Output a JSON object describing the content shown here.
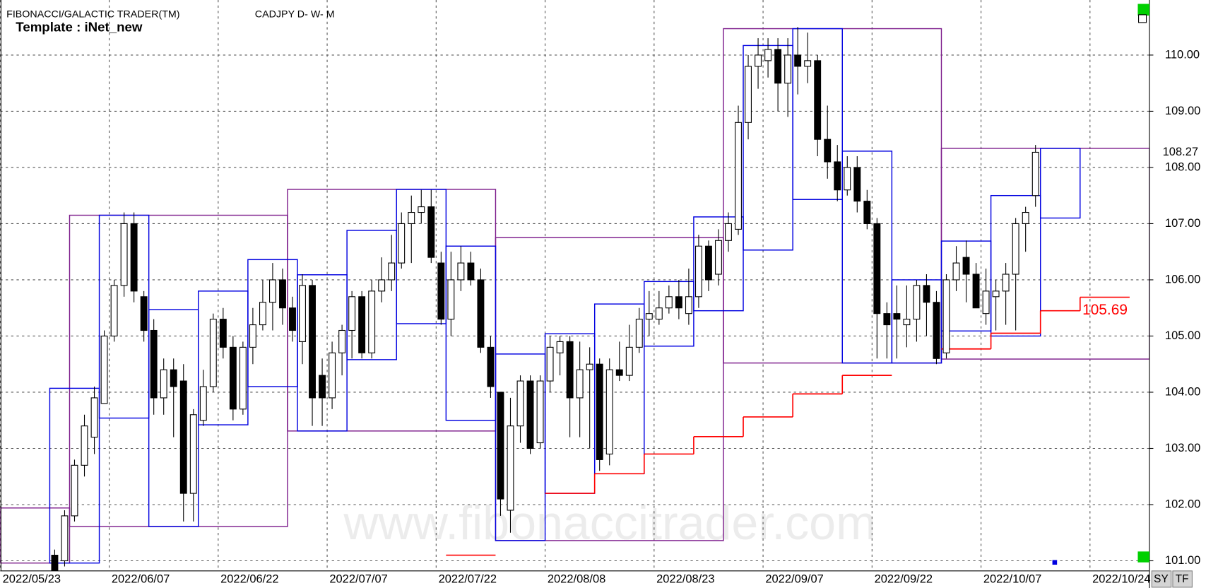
{
  "header": {
    "title": "FIBONACCI/GALACTIC TRADER(TM)",
    "symbol": "CADJPY D- W- M",
    "template": "Template : iNet_new",
    "watermark": "www.fibonaccitrader.com",
    "buttons": [
      "SY",
      "TF"
    ]
  },
  "chart_data": {
    "type": "candlestick",
    "x": [
      "2022/05/30",
      "2022/05/31",
      "2022/06/01",
      "2022/06/02",
      "2022/06/03",
      "2022/06/06",
      "2022/06/07",
      "2022/06/08",
      "2022/06/09",
      "2022/06/10",
      "2022/06/13",
      "2022/06/14",
      "2022/06/15",
      "2022/06/16",
      "2022/06/17",
      "2022/06/20",
      "2022/06/21",
      "2022/06/22",
      "2022/06/23",
      "2022/06/24",
      "2022/06/27",
      "2022/06/28",
      "2022/06/29",
      "2022/06/30",
      "2022/07/01",
      "2022/07/04",
      "2022/07/05",
      "2022/07/06",
      "2022/07/07",
      "2022/07/08",
      "2022/07/11",
      "2022/07/12",
      "2022/07/13",
      "2022/07/14",
      "2022/07/15",
      "2022/07/18",
      "2022/07/19",
      "2022/07/20",
      "2022/07/21",
      "2022/07/22",
      "2022/07/25",
      "2022/07/26",
      "2022/07/27",
      "2022/07/28",
      "2022/07/29",
      "2022/08/01",
      "2022/08/02",
      "2022/08/03",
      "2022/08/04",
      "2022/08/05",
      "2022/08/08",
      "2022/08/09",
      "2022/08/10",
      "2022/08/11",
      "2022/08/12",
      "2022/08/15",
      "2022/08/16",
      "2022/08/17",
      "2022/08/18",
      "2022/08/19",
      "2022/08/22",
      "2022/08/23",
      "2022/08/24",
      "2022/08/25",
      "2022/08/26",
      "2022/08/29",
      "2022/08/30",
      "2022/08/31",
      "2022/09/01",
      "2022/09/02",
      "2022/09/05",
      "2022/09/06",
      "2022/09/07",
      "2022/09/08",
      "2022/09/09",
      "2022/09/12",
      "2022/09/13",
      "2022/09/14",
      "2022/09/15",
      "2022/09/16",
      "2022/09/19",
      "2022/09/20",
      "2022/09/21",
      "2022/09/22",
      "2022/09/23",
      "2022/09/26",
      "2022/09/27",
      "2022/09/28",
      "2022/09/29",
      "2022/09/30",
      "2022/10/03",
      "2022/10/04",
      "2022/10/05",
      "2022/10/06",
      "2022/10/07",
      "2022/10/10",
      "2022/10/11",
      "2022/10/12",
      "2022/10/13",
      "2022/10/14"
    ],
    "open": [
      101.1,
      101.0,
      101.8,
      102.7,
      103.2,
      103.8,
      105.0,
      105.9,
      107.0,
      105.7,
      105.1,
      103.9,
      104.4,
      104.2,
      102.2,
      103.5,
      104.1,
      105.3,
      104.8,
      103.7,
      104.8,
      105.2,
      105.6,
      106.0,
      105.5,
      104.9,
      105.9,
      104.3,
      103.9,
      104.7,
      105.1,
      105.7,
      104.7,
      105.8,
      106.0,
      106.3,
      107.0,
      107.2,
      107.3,
      106.3,
      105.3,
      106.0,
      106.3,
      106.0,
      104.8,
      104.0,
      101.9,
      103.4,
      104.2,
      103.1,
      104.2,
      104.7,
      104.9,
      103.9,
      104.4,
      104.5,
      102.9,
      104.4,
      104.3,
      104.8,
      105.3,
      105.3,
      105.5,
      105.7,
      105.4,
      105.7,
      106.6,
      106.1,
      106.7,
      106.9,
      108.8,
      109.8,
      109.9,
      110.1,
      109.5,
      110.0,
      109.8,
      109.9,
      108.5,
      108.1,
      107.6,
      108.0,
      107.4,
      107.0,
      105.4,
      105.4,
      105.2,
      105.3,
      105.9,
      105.6,
      104.7,
      106.0,
      106.4,
      106.1,
      105.4,
      105.7,
      105.8,
      106.1,
      107.0,
      107.5
    ],
    "high": [
      101.2,
      101.9,
      102.8,
      103.6,
      104.1,
      105.1,
      106.0,
      107.2,
      107.2,
      105.8,
      105.3,
      104.6,
      104.6,
      104.5,
      103.7,
      104.4,
      105.4,
      105.5,
      105.0,
      104.9,
      105.5,
      106.0,
      106.3,
      106.2,
      105.7,
      106.1,
      106.0,
      104.6,
      104.9,
      105.2,
      105.8,
      105.8,
      106.0,
      106.4,
      106.8,
      107.2,
      107.5,
      107.6,
      107.6,
      106.5,
      106.5,
      106.6,
      106.5,
      106.2,
      105.0,
      104.0,
      103.9,
      104.3,
      104.3,
      104.3,
      105.0,
      105.0,
      105.0,
      104.9,
      104.8,
      104.6,
      104.6,
      104.9,
      105.2,
      105.5,
      105.8,
      105.8,
      105.9,
      106.0,
      106.2,
      106.8,
      106.7,
      106.9,
      107.2,
      109.1,
      110.0,
      110.3,
      110.3,
      110.3,
      110.3,
      110.5,
      110.4,
      110.0,
      109.1,
      108.4,
      108.2,
      108.2,
      107.6,
      107.1,
      105.6,
      105.9,
      105.9,
      106.0,
      106.1,
      105.8,
      106.1,
      106.6,
      106.7,
      106.3,
      106.2,
      106.0,
      106.3,
      107.1,
      107.3,
      108.4
    ],
    "low": [
      100.5,
      100.9,
      101.7,
      102.5,
      102.9,
      103.8,
      104.9,
      105.7,
      105.6,
      104.9,
      103.6,
      103.6,
      103.2,
      101.7,
      101.7,
      103.4,
      104.0,
      104.6,
      103.5,
      103.6,
      104.5,
      105.1,
      105.1,
      105.2,
      104.9,
      104.5,
      103.4,
      103.4,
      103.7,
      104.3,
      104.6,
      104.6,
      104.6,
      105.6,
      105.8,
      106.2,
      106.3,
      107.0,
      106.3,
      105.2,
      105.0,
      105.8,
      105.9,
      104.7,
      103.9,
      101.8,
      101.5,
      103.1,
      102.9,
      103.0,
      104.0,
      104.3,
      103.2,
      103.2,
      103.0,
      102.6,
      102.7,
      104.2,
      104.2,
      104.7,
      105.0,
      105.2,
      105.4,
      105.3,
      105.2,
      105.5,
      105.8,
      105.9,
      106.5,
      106.8,
      108.5,
      109.4,
      109.6,
      109.0,
      108.9,
      109.3,
      109.5,
      108.2,
      107.8,
      107.4,
      107.5,
      107.2,
      106.9,
      104.6,
      104.6,
      104.6,
      104.8,
      104.9,
      105.0,
      104.5,
      104.6,
      105.8,
      105.6,
      105.5,
      105.2,
      105.1,
      105.2,
      105.1,
      106.5,
      107.3
    ],
    "close": [
      100.8,
      101.8,
      102.7,
      103.4,
      103.9,
      105.0,
      105.9,
      107.0,
      105.8,
      105.1,
      103.9,
      104.4,
      104.1,
      102.2,
      103.6,
      104.1,
      105.3,
      104.8,
      103.7,
      104.8,
      105.2,
      105.6,
      106.0,
      105.5,
      105.1,
      105.9,
      103.9,
      103.9,
      104.7,
      105.1,
      105.7,
      104.7,
      105.8,
      106.0,
      106.3,
      107.0,
      107.2,
      107.3,
      106.4,
      105.3,
      106.0,
      106.3,
      106.0,
      104.8,
      104.1,
      102.1,
      103.4,
      104.2,
      103.0,
      104.2,
      104.8,
      104.9,
      103.9,
      104.4,
      104.5,
      102.8,
      104.4,
      104.3,
      104.8,
      105.3,
      105.4,
      105.5,
      105.7,
      105.5,
      105.7,
      106.6,
      106.0,
      106.7,
      107.0,
      108.8,
      109.8,
      110.0,
      110.1,
      109.5,
      110.0,
      109.8,
      109.9,
      108.5,
      108.1,
      107.6,
      108.0,
      107.4,
      107.0,
      105.4,
      105.2,
      105.3,
      105.3,
      105.9,
      105.6,
      104.6,
      106.0,
      106.3,
      106.1,
      105.5,
      105.8,
      105.8,
      106.1,
      107.0,
      107.2,
      108.27
    ],
    "up_color": "#ffffff",
    "down_color": "#000000",
    "range_boxes": [
      {
        "color": "#7d1d8c",
        "starts": [
          "2022/05/23",
          "2022/06/01",
          "2022/07/01",
          "2022/08/01",
          "2022/09/01",
          "2022/10/03"
        ],
        "ends": [
          "2022/06/01",
          "2022/07/01",
          "2022/08/01",
          "2022/09/01",
          "2022/10/03",
          "2022/11/01"
        ],
        "highs": [
          101.94,
          107.15,
          107.61,
          106.75,
          110.47,
          108.34
        ],
        "lows": [
          100.96,
          101.61,
          103.31,
          101.36,
          104.52,
          104.59
        ]
      },
      {
        "color": "#0000e0",
        "starts": [
          "2022/05/30",
          "2022/06/06",
          "2022/06/13",
          "2022/06/20",
          "2022/06/27",
          "2022/07/04",
          "2022/07/11",
          "2022/07/18",
          "2022/07/25",
          "2022/08/01",
          "2022/08/08",
          "2022/08/15",
          "2022/08/22",
          "2022/08/29",
          "2022/09/05",
          "2022/09/12",
          "2022/09/19",
          "2022/09/26",
          "2022/10/03",
          "2022/10/10",
          "2022/10/17"
        ],
        "ends": [
          "2022/06/06",
          "2022/06/13",
          "2022/06/20",
          "2022/06/27",
          "2022/07/04",
          "2022/07/11",
          "2022/07/18",
          "2022/07/25",
          "2022/08/01",
          "2022/08/08",
          "2022/08/15",
          "2022/08/22",
          "2022/08/29",
          "2022/09/05",
          "2022/09/12",
          "2022/09/19",
          "2022/09/26",
          "2022/10/03",
          "2022/10/10",
          "2022/10/17",
          "2022/10/21"
        ],
        "highs": [
          104.07,
          107.15,
          105.47,
          105.8,
          106.36,
          106.09,
          106.88,
          107.61,
          106.6,
          104.68,
          105.04,
          105.57,
          105.97,
          107.12,
          110.17,
          110.47,
          108.29,
          106.0,
          106.69,
          107.5,
          108.34
        ],
        "lows": [
          100.96,
          103.54,
          101.61,
          103.42,
          104.1,
          103.31,
          104.58,
          105.22,
          103.5,
          101.36,
          102.2,
          102.55,
          104.82,
          105.45,
          106.53,
          107.43,
          104.52,
          104.52,
          105.09,
          105.0,
          107.1
        ]
      }
    ],
    "steps": {
      "color": "#ff0000",
      "starts": [
        "2022/07/25",
        "2022/08/08",
        "2022/08/15",
        "2022/08/22",
        "2022/08/29",
        "2022/09/05",
        "2022/09/12",
        "2022/09/19",
        "2022/10/03",
        "2022/10/10",
        "2022/10/17",
        "2022/10/21"
      ],
      "ends": [
        "2022/08/01",
        "2022/08/15",
        "2022/08/22",
        "2022/08/29",
        "2022/09/05",
        "2022/09/12",
        "2022/09/19",
        "2022/09/26",
        "2022/10/10",
        "2022/10/17",
        "2022/10/21",
        "2022/10/28"
      ],
      "values": [
        101.1,
        102.2,
        102.55,
        102.9,
        103.21,
        103.56,
        103.97,
        104.3,
        104.77,
        105.05,
        105.45,
        105.69
      ]
    },
    "xlim": [
      "2022/05/23",
      "2022/11/01"
    ],
    "xticks": [
      "2022/05/23",
      "2022/06/07",
      "2022/06/22",
      "2022/07/07",
      "2022/07/22",
      "2022/08/08",
      "2022/08/23",
      "2022/09/07",
      "2022/09/22",
      "2022/10/07",
      "2022/10/24"
    ],
    "ylim": [
      100.82,
      110.98
    ],
    "yticks": [
      {
        "value": 101,
        "label": "101.00"
      },
      {
        "value": 102,
        "label": "102.00"
      },
      {
        "value": 103,
        "label": "103.00"
      },
      {
        "value": 104,
        "label": "104.00"
      },
      {
        "value": 105,
        "label": "105.00"
      },
      {
        "value": 106,
        "label": "106.00"
      },
      {
        "value": 107,
        "label": "107.00"
      },
      {
        "value": 108,
        "label": "108.00"
      },
      {
        "value": 109,
        "label": "109.00"
      },
      {
        "value": 110,
        "label": "110.00"
      }
    ],
    "grid": true
  }
}
